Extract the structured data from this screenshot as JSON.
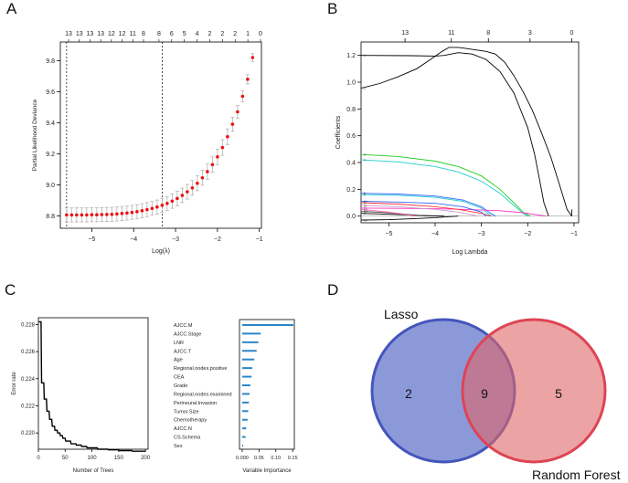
{
  "panels": {
    "A": "A",
    "B": "B",
    "C": "C",
    "D": "D"
  },
  "chart_data": [
    {
      "type": "scatter",
      "panel": "A",
      "title": "",
      "xlabel": "Log(λ)",
      "ylabel": "Partial Likelihood Deviance",
      "xlim": [
        -5.75,
        -0.95
      ],
      "ylim": [
        8.72,
        9.92
      ],
      "xticks": [
        -5,
        -4,
        -3,
        -2,
        -1
      ],
      "yticks": [
        8.8,
        9.0,
        9.2,
        9.4,
        9.6,
        9.8
      ],
      "top_axis_ticks": [
        -5.6,
        -5.22,
        -4.84,
        -4.46,
        -4.08,
        -3.7,
        -3.32,
        -2.94,
        -2.56,
        -2.18,
        -1.8,
        -1.42,
        -1.04
      ],
      "top_axis_labels": [
        "13",
        "13",
        "13",
        "13",
        "12",
        "12",
        "11",
        "8",
        "8",
        "6",
        "5",
        "4",
        "2",
        "2",
        "2",
        "1",
        "0"
      ],
      "top_axis_label_x": [
        -5.6,
        -5.33,
        -5.06,
        -4.79,
        -4.52,
        -4.25,
        -3.98,
        -3.71,
        -3.32,
        -3.0,
        -2.68,
        -2.36,
        -2.04,
        -1.72,
        -1.4,
        -1.08,
        -0.76
      ],
      "vlines": [
        -5.6,
        -3.32
      ],
      "log_lambda": [
        -5.6,
        -5.48,
        -5.36,
        -5.24,
        -5.12,
        -5.0,
        -4.88,
        -4.76,
        -4.64,
        -4.52,
        -4.4,
        -4.28,
        -4.16,
        -4.04,
        -3.92,
        -3.8,
        -3.68,
        -3.56,
        -3.44,
        -3.32,
        -3.2,
        -3.08,
        -2.96,
        -2.84,
        -2.72,
        -2.6,
        -2.48,
        -2.36,
        -2.24,
        -2.12,
        -2.0,
        -1.88,
        -1.76,
        -1.64,
        -1.52,
        -1.4,
        -1.28,
        -1.16
      ],
      "deviance": [
        8.806,
        8.806,
        8.806,
        8.806,
        8.806,
        8.807,
        8.807,
        8.808,
        8.809,
        8.81,
        8.812,
        8.815,
        8.818,
        8.822,
        8.827,
        8.833,
        8.84,
        8.848,
        8.857,
        8.868,
        8.88,
        8.895,
        8.912,
        8.932,
        8.955,
        8.98,
        9.01,
        9.045,
        9.085,
        9.13,
        9.18,
        9.24,
        9.31,
        9.39,
        9.47,
        9.57,
        9.68,
        9.82
      ],
      "error": [
        0.045,
        0.045,
        0.045,
        0.045,
        0.045,
        0.045,
        0.045,
        0.045,
        0.045,
        0.045,
        0.045,
        0.045,
        0.045,
        0.045,
        0.045,
        0.045,
        0.045,
        0.045,
        0.045,
        0.045,
        0.045,
        0.046,
        0.046,
        0.046,
        0.047,
        0.047,
        0.048,
        0.048,
        0.049,
        0.05,
        0.05,
        0.05,
        0.05,
        0.045,
        0.04,
        0.035,
        0.03,
        0.025
      ]
    },
    {
      "type": "line",
      "panel": "B",
      "title": "",
      "xlabel": "Log Lambda",
      "ylabel": "Coefficients",
      "xlim": [
        -5.6,
        -0.9
      ],
      "ylim": [
        -0.05,
        1.3
      ],
      "xticks": [
        -5,
        -4,
        -3,
        -2,
        -1
      ],
      "yticks": [
        0.0,
        0.2,
        0.4,
        0.6,
        0.8,
        1.0,
        1.2
      ],
      "top_axis_ticks": [
        -4.65,
        -3.65,
        -2.85,
        -1.95,
        -1.05
      ],
      "top_axis_labels": [
        "13",
        "11",
        "8",
        "3",
        "0"
      ],
      "series": [
        {
          "name": "1",
          "color": "#000000",
          "x": [
            -5.6,
            -4.5,
            -4.0,
            -3.8,
            -3.5,
            -3.2,
            -2.9,
            -2.6,
            -2.3,
            -2.0,
            -1.85,
            -1.75,
            -1.65,
            -1.55
          ],
          "y": [
            1.2,
            1.198,
            1.195,
            1.2,
            1.22,
            1.21,
            1.17,
            1.08,
            0.92,
            0.66,
            0.46,
            0.28,
            0.1,
            0.0
          ]
        },
        {
          "name": "2",
          "color": "#000000",
          "x": [
            -5.6,
            -5.2,
            -4.8,
            -4.4,
            -4.1,
            -3.85,
            -3.7,
            -3.5,
            -3.3,
            -3.1,
            -2.9,
            -2.7,
            -2.5,
            -2.3,
            -2.1,
            -1.9,
            -1.7,
            -1.5,
            -1.3,
            -1.15,
            -1.05
          ],
          "y": [
            0.955,
            0.99,
            1.04,
            1.1,
            1.17,
            1.23,
            1.26,
            1.26,
            1.25,
            1.24,
            1.23,
            1.21,
            1.15,
            1.05,
            0.93,
            0.79,
            0.62,
            0.44,
            0.22,
            0.05,
            0.0
          ]
        },
        {
          "name": "3",
          "color": "#22cc22",
          "x": [
            -5.6,
            -4.8,
            -4.0,
            -3.5,
            -3.0,
            -2.6,
            -2.3,
            -2.1,
            -1.95
          ],
          "y": [
            0.46,
            0.445,
            0.41,
            0.37,
            0.3,
            0.2,
            0.1,
            0.03,
            0.0
          ]
        },
        {
          "name": "4",
          "color": "#22cccc",
          "x": [
            -5.6,
            -4.8,
            -4.0,
            -3.5,
            -3.0,
            -2.6,
            -2.3,
            -2.1,
            -2.0
          ],
          "y": [
            0.42,
            0.405,
            0.37,
            0.33,
            0.26,
            0.17,
            0.08,
            0.02,
            0.0
          ]
        },
        {
          "name": "5",
          "color": "#3366ff",
          "x": [
            -5.6,
            -4.8,
            -4.0,
            -3.4,
            -3.0,
            -2.8,
            -2.7
          ],
          "y": [
            0.17,
            0.165,
            0.15,
            0.12,
            0.07,
            0.02,
            0.0
          ]
        },
        {
          "name": "6",
          "color": "#22cccc",
          "x": [
            -5.6,
            -4.8,
            -4.0,
            -3.4,
            -3.0,
            -2.85,
            -2.78
          ],
          "y": [
            0.16,
            0.155,
            0.14,
            0.11,
            0.06,
            0.015,
            0.0
          ]
        },
        {
          "name": "7",
          "color": "#ff33cc",
          "x": [
            -5.6,
            -4.8,
            -4.0,
            -3.4,
            -2.6,
            -2.1,
            -1.8,
            -1.6
          ],
          "y": [
            0.06,
            0.058,
            0.055,
            0.05,
            0.04,
            0.025,
            0.01,
            0.0
          ]
        },
        {
          "name": "8",
          "color": "#000000",
          "x": [
            -5.6,
            -4.8,
            -4.3,
            -4.0,
            -3.8
          ],
          "y": [
            0.02,
            0.012,
            0.005,
            0.001,
            0.0
          ]
        },
        {
          "name": "9",
          "color": "#ff3333",
          "x": [
            -5.6,
            -4.8,
            -4.0,
            -3.5,
            -3.0,
            -2.8
          ],
          "y": [
            0.1,
            0.09,
            0.07,
            0.05,
            0.02,
            0.0
          ]
        },
        {
          "name": "10",
          "color": "#3366ff",
          "x": [
            -5.6,
            -4.8,
            -4.0,
            -3.4,
            -3.0,
            -2.9
          ],
          "y": [
            0.11,
            0.105,
            0.095,
            0.07,
            0.03,
            0.0
          ]
        },
        {
          "name": "11",
          "color": "#cc99cc",
          "x": [
            -5.6,
            -4.8,
            -4.0,
            -3.5,
            -3.2,
            -3.1
          ],
          "y": [
            0.08,
            0.07,
            0.05,
            0.03,
            0.01,
            0.0
          ]
        },
        {
          "name": "12",
          "color": "#555555",
          "x": [
            -5.6,
            -5.0,
            -4.5,
            -4.2
          ],
          "y": [
            0.035,
            0.025,
            0.01,
            0.0
          ]
        },
        {
          "name": "13",
          "color": "#ff66aa",
          "x": [
            -5.6,
            -5.0,
            -4.6,
            -4.4
          ],
          "y": [
            0.05,
            0.03,
            0.01,
            0.0
          ]
        },
        {
          "name": "14",
          "color": "#000000",
          "x": [
            -5.6,
            -5.0,
            -4.5,
            -4.0,
            -3.7,
            -3.5
          ],
          "y": [
            -0.03,
            -0.027,
            -0.02,
            -0.012,
            -0.004,
            0.0
          ]
        }
      ]
    },
    {
      "type": "line",
      "panel": "C-left",
      "title": "",
      "xlabel": "Number of Trees",
      "ylabel": "Error rate",
      "xlim": [
        0,
        205
      ],
      "ylim": [
        0.2188,
        0.2285
      ],
      "xticks": [
        0,
        50,
        100,
        150,
        200
      ],
      "yticks": [
        0.22,
        0.222,
        0.224,
        0.226,
        0.228
      ],
      "x": [
        1,
        5,
        6,
        10,
        11,
        15,
        16,
        20,
        21,
        25,
        26,
        30,
        31,
        35,
        36,
        40,
        41,
        45,
        46,
        50,
        51,
        60,
        61,
        70,
        71,
        80,
        81,
        90,
        91,
        110,
        111,
        130,
        131,
        150,
        151,
        175,
        176,
        200
      ],
      "y": [
        0.2282,
        0.2282,
        0.2237,
        0.2237,
        0.2225,
        0.2225,
        0.2216,
        0.2216,
        0.221,
        0.221,
        0.2205,
        0.2205,
        0.2202,
        0.2202,
        0.22,
        0.22,
        0.2198,
        0.2198,
        0.2196,
        0.2196,
        0.2194,
        0.2194,
        0.2192,
        0.2192,
        0.2191,
        0.2191,
        0.219,
        0.219,
        0.2189,
        0.2189,
        0.2188,
        0.2188,
        0.21875,
        0.21875,
        0.2187,
        0.2187,
        0.21865,
        0.21865
      ]
    },
    {
      "type": "bar",
      "panel": "C-right",
      "orientation": "horizontal",
      "title": "",
      "xlabel": "Variable Importance",
      "ylabel": "",
      "xlim": [
        -0.008,
        0.155
      ],
      "xticks": [
        0.0,
        0.05,
        0.1,
        0.15
      ],
      "xtick_labels": [
        "0.000",
        "0.05",
        "0.10",
        "0.15"
      ],
      "categories": [
        "AJCC.M",
        "AJCC.Stage",
        "LNR",
        "AJCC.T",
        "Age",
        "Regional.nodes.positive",
        "CEA",
        "Grade",
        "Regional.nodes.examined",
        "Perineural.Invasion",
        "Tumor.Size",
        "Chemotherapy",
        "AJCC.N",
        "CS.Schema",
        "Sex"
      ],
      "values": [
        0.152,
        0.055,
        0.048,
        0.043,
        0.036,
        0.03,
        0.028,
        0.024,
        0.022,
        0.02,
        0.018,
        0.016,
        0.012,
        0.01,
        0.003
      ]
    },
    {
      "type": "venn",
      "panel": "D",
      "sets": [
        {
          "name": "Lasso",
          "only": "2",
          "color": "#6677cc"
        },
        {
          "name": "Random Forest",
          "only": "5",
          "color": "#e06666"
        }
      ],
      "intersection": "9"
    }
  ]
}
